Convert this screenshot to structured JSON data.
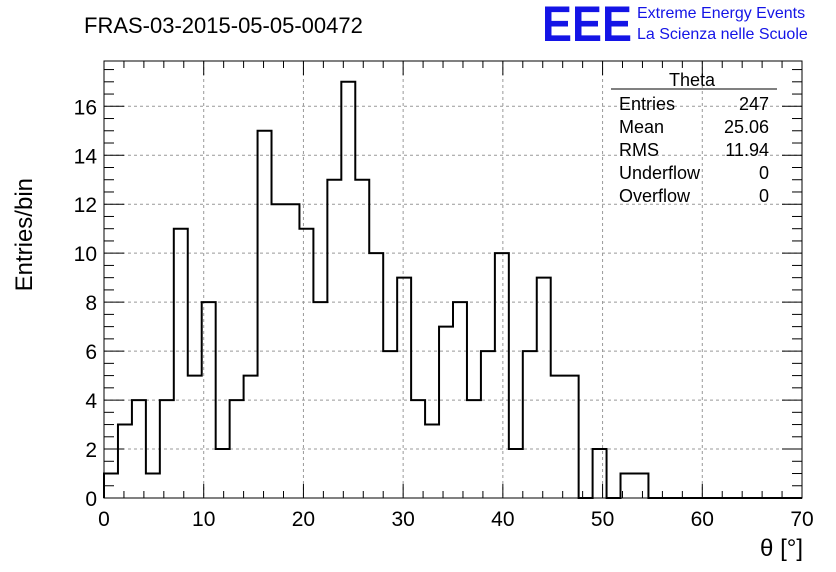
{
  "title": "FRAS-03-2015-05-05-00472",
  "logo": {
    "mark": "EEE",
    "line1": "Extreme Energy Events",
    "line2": "La Scienza nelle Scuole",
    "color": "#1414e6"
  },
  "stats": {
    "name": "Theta",
    "rows": [
      {
        "label": "Entries",
        "value": "247"
      },
      {
        "label": "Mean",
        "value": "25.06"
      },
      {
        "label": "RMS",
        "value": "11.94"
      },
      {
        "label": "Underflow",
        "value": "0"
      },
      {
        "label": "Overflow",
        "value": "0"
      }
    ]
  },
  "chart_data": {
    "type": "histogram",
    "xlabel": "θ [°]",
    "ylabel": "Entries/bin",
    "xlim": [
      0,
      70
    ],
    "ylim": [
      0,
      17.85
    ],
    "x_ticks": [
      0,
      10,
      20,
      30,
      40,
      50,
      60,
      70
    ],
    "y_ticks": [
      0,
      2,
      4,
      6,
      8,
      10,
      12,
      14,
      16
    ],
    "grid": true,
    "bin_width": 1.4,
    "bin_edges_start": 0,
    "values": [
      1,
      3,
      4,
      1,
      4,
      11,
      5,
      8,
      2,
      4,
      5,
      15,
      12,
      12,
      11,
      8,
      13,
      17,
      13,
      10,
      6,
      9,
      4,
      3,
      7,
      8,
      4,
      6,
      10,
      2,
      6,
      9,
      5,
      5,
      0,
      2,
      0,
      1,
      1,
      0,
      0,
      0,
      0,
      0,
      0,
      0,
      0,
      0,
      0,
      0
    ]
  }
}
